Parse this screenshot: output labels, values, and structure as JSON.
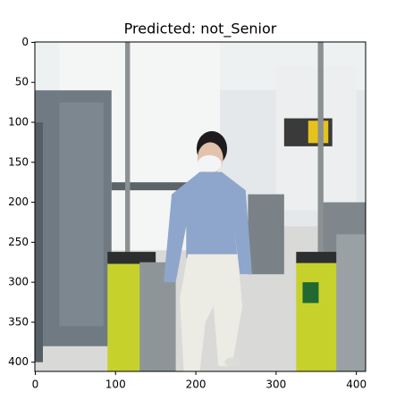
{
  "chart_data": {
    "type": "image",
    "title": "Predicted: not_Senior",
    "xlim": [
      -0.5,
      411.5
    ],
    "ylim": [
      411.5,
      -0.5
    ],
    "xticks": [
      0,
      100,
      200,
      300,
      400
    ],
    "yticks": [
      0,
      50,
      100,
      150,
      200,
      250,
      300,
      350,
      400
    ]
  }
}
